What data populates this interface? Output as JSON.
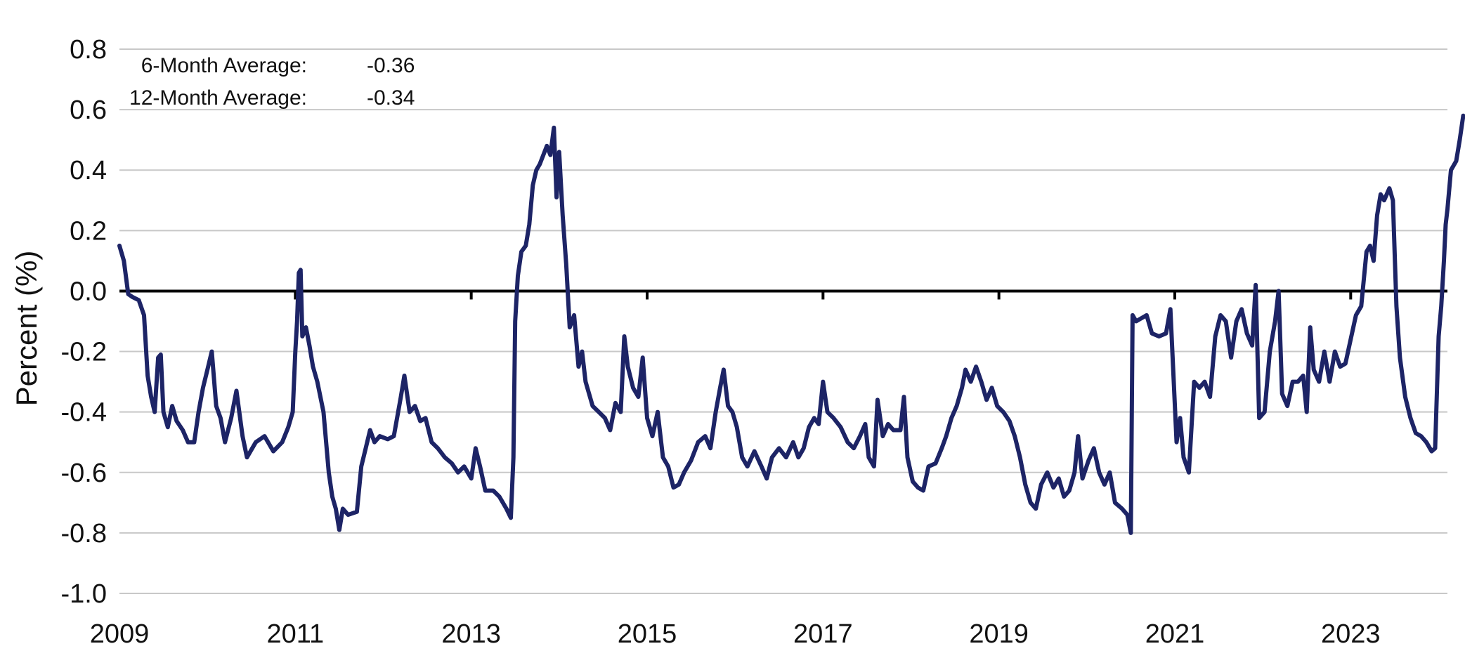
{
  "chart_data": {
    "type": "line",
    "title": "",
    "xlabel": "",
    "ylabel": "Percent (%)",
    "xlim": [
      2009,
      2024.1
    ],
    "ylim": [
      -1.0,
      0.8
    ],
    "y_ticks": [
      "0.8",
      "0.6",
      "0.4",
      "0.2",
      "0.0",
      "-0.2",
      "-0.4",
      "-0.6",
      "-0.8",
      "-1.0"
    ],
    "x_ticks": [
      "2009",
      "2011",
      "2013",
      "2015",
      "2017",
      "2019",
      "2021",
      "2023"
    ],
    "grid": "horizontal",
    "legend": "none",
    "colors": {
      "line": "#1d2466",
      "grid": "#c8c8c8",
      "zero_line": "#000000"
    },
    "annotations": [
      {
        "label": "6-Month Average:",
        "value": "-0.36"
      },
      {
        "label": "12-Month Average:",
        "value": "-0.34"
      }
    ],
    "series": [
      {
        "values": [
          [
            2009.0,
            0.15
          ],
          [
            2009.05,
            0.1
          ],
          [
            2009.1,
            -0.01
          ],
          [
            2009.15,
            -0.02
          ],
          [
            2009.22,
            -0.03
          ],
          [
            2009.28,
            -0.08
          ],
          [
            2009.32,
            -0.28
          ],
          [
            2009.36,
            -0.35
          ],
          [
            2009.4,
            -0.4
          ],
          [
            2009.44,
            -0.22
          ],
          [
            2009.47,
            -0.21
          ],
          [
            2009.5,
            -0.4
          ],
          [
            2009.55,
            -0.45
          ],
          [
            2009.6,
            -0.38
          ],
          [
            2009.65,
            -0.43
          ],
          [
            2009.72,
            -0.46
          ],
          [
            2009.78,
            -0.5
          ],
          [
            2009.85,
            -0.5
          ],
          [
            2009.9,
            -0.4
          ],
          [
            2009.95,
            -0.32
          ],
          [
            2010.0,
            -0.26
          ],
          [
            2010.05,
            -0.2
          ],
          [
            2010.1,
            -0.38
          ],
          [
            2010.15,
            -0.42
          ],
          [
            2010.2,
            -0.5
          ],
          [
            2010.27,
            -0.42
          ],
          [
            2010.33,
            -0.33
          ],
          [
            2010.4,
            -0.48
          ],
          [
            2010.45,
            -0.55
          ],
          [
            2010.55,
            -0.5
          ],
          [
            2010.65,
            -0.48
          ],
          [
            2010.75,
            -0.53
          ],
          [
            2010.85,
            -0.5
          ],
          [
            2010.92,
            -0.45
          ],
          [
            2010.97,
            -0.4
          ],
          [
            2011.0,
            -0.2
          ],
          [
            2011.02,
            -0.1
          ],
          [
            2011.04,
            0.06
          ],
          [
            2011.06,
            0.07
          ],
          [
            2011.08,
            -0.15
          ],
          [
            2011.12,
            -0.12
          ],
          [
            2011.16,
            -0.18
          ],
          [
            2011.2,
            -0.25
          ],
          [
            2011.25,
            -0.3
          ],
          [
            2011.32,
            -0.4
          ],
          [
            2011.38,
            -0.6
          ],
          [
            2011.42,
            -0.68
          ],
          [
            2011.46,
            -0.72
          ],
          [
            2011.5,
            -0.79
          ],
          [
            2011.54,
            -0.72
          ],
          [
            2011.6,
            -0.74
          ],
          [
            2011.7,
            -0.73
          ],
          [
            2011.75,
            -0.58
          ],
          [
            2011.8,
            -0.52
          ],
          [
            2011.85,
            -0.46
          ],
          [
            2011.9,
            -0.5
          ],
          [
            2011.96,
            -0.48
          ],
          [
            2012.05,
            -0.49
          ],
          [
            2012.12,
            -0.48
          ],
          [
            2012.2,
            -0.35
          ],
          [
            2012.24,
            -0.28
          ],
          [
            2012.3,
            -0.4
          ],
          [
            2012.36,
            -0.38
          ],
          [
            2012.42,
            -0.43
          ],
          [
            2012.48,
            -0.42
          ],
          [
            2012.55,
            -0.5
          ],
          [
            2012.62,
            -0.52
          ],
          [
            2012.7,
            -0.55
          ],
          [
            2012.78,
            -0.57
          ],
          [
            2012.85,
            -0.6
          ],
          [
            2012.92,
            -0.58
          ],
          [
            2013.0,
            -0.62
          ],
          [
            2013.05,
            -0.52
          ],
          [
            2013.1,
            -0.58
          ],
          [
            2013.16,
            -0.66
          ],
          [
            2013.25,
            -0.66
          ],
          [
            2013.32,
            -0.68
          ],
          [
            2013.4,
            -0.72
          ],
          [
            2013.45,
            -0.75
          ],
          [
            2013.48,
            -0.55
          ],
          [
            2013.5,
            -0.1
          ],
          [
            2013.53,
            0.05
          ],
          [
            2013.57,
            0.13
          ],
          [
            2013.62,
            0.15
          ],
          [
            2013.66,
            0.22
          ],
          [
            2013.7,
            0.35
          ],
          [
            2013.74,
            0.4
          ],
          [
            2013.78,
            0.42
          ],
          [
            2013.82,
            0.45
          ],
          [
            2013.86,
            0.48
          ],
          [
            2013.9,
            0.45
          ],
          [
            2013.94,
            0.54
          ],
          [
            2013.97,
            0.31
          ],
          [
            2014.0,
            0.46
          ],
          [
            2014.04,
            0.25
          ],
          [
            2014.08,
            0.09
          ],
          [
            2014.12,
            -0.12
          ],
          [
            2014.17,
            -0.08
          ],
          [
            2014.22,
            -0.25
          ],
          [
            2014.26,
            -0.2
          ],
          [
            2014.3,
            -0.3
          ],
          [
            2014.38,
            -0.38
          ],
          [
            2014.45,
            -0.4
          ],
          [
            2014.52,
            -0.42
          ],
          [
            2014.58,
            -0.46
          ],
          [
            2014.64,
            -0.37
          ],
          [
            2014.7,
            -0.4
          ],
          [
            2014.74,
            -0.15
          ],
          [
            2014.78,
            -0.25
          ],
          [
            2014.84,
            -0.32
          ],
          [
            2014.9,
            -0.35
          ],
          [
            2014.95,
            -0.22
          ],
          [
            2015.0,
            -0.42
          ],
          [
            2015.06,
            -0.48
          ],
          [
            2015.12,
            -0.4
          ],
          [
            2015.18,
            -0.55
          ],
          [
            2015.24,
            -0.58
          ],
          [
            2015.3,
            -0.65
          ],
          [
            2015.36,
            -0.64
          ],
          [
            2015.42,
            -0.6
          ],
          [
            2015.5,
            -0.56
          ],
          [
            2015.58,
            -0.5
          ],
          [
            2015.66,
            -0.48
          ],
          [
            2015.72,
            -0.52
          ],
          [
            2015.78,
            -0.4
          ],
          [
            2015.83,
            -0.32
          ],
          [
            2015.87,
            -0.26
          ],
          [
            2015.92,
            -0.38
          ],
          [
            2015.97,
            -0.4
          ],
          [
            2016.02,
            -0.45
          ],
          [
            2016.08,
            -0.55
          ],
          [
            2016.14,
            -0.58
          ],
          [
            2016.22,
            -0.53
          ],
          [
            2016.3,
            -0.58
          ],
          [
            2016.36,
            -0.62
          ],
          [
            2016.42,
            -0.55
          ],
          [
            2016.5,
            -0.52
          ],
          [
            2016.58,
            -0.55
          ],
          [
            2016.66,
            -0.5
          ],
          [
            2016.72,
            -0.55
          ],
          [
            2016.78,
            -0.52
          ],
          [
            2016.84,
            -0.45
          ],
          [
            2016.9,
            -0.42
          ],
          [
            2016.95,
            -0.44
          ],
          [
            2017.0,
            -0.3
          ],
          [
            2017.05,
            -0.4
          ],
          [
            2017.12,
            -0.42
          ],
          [
            2017.2,
            -0.45
          ],
          [
            2017.28,
            -0.5
          ],
          [
            2017.35,
            -0.52
          ],
          [
            2017.42,
            -0.48
          ],
          [
            2017.48,
            -0.44
          ],
          [
            2017.52,
            -0.55
          ],
          [
            2017.58,
            -0.58
          ],
          [
            2017.62,
            -0.36
          ],
          [
            2017.68,
            -0.48
          ],
          [
            2017.74,
            -0.44
          ],
          [
            2017.8,
            -0.46
          ],
          [
            2017.88,
            -0.46
          ],
          [
            2017.92,
            -0.35
          ],
          [
            2017.96,
            -0.55
          ],
          [
            2018.02,
            -0.63
          ],
          [
            2018.08,
            -0.65
          ],
          [
            2018.14,
            -0.66
          ],
          [
            2018.2,
            -0.58
          ],
          [
            2018.28,
            -0.57
          ],
          [
            2018.35,
            -0.52
          ],
          [
            2018.4,
            -0.48
          ],
          [
            2018.46,
            -0.42
          ],
          [
            2018.52,
            -0.38
          ],
          [
            2018.58,
            -0.32
          ],
          [
            2018.62,
            -0.26
          ],
          [
            2018.68,
            -0.3
          ],
          [
            2018.74,
            -0.25
          ],
          [
            2018.8,
            -0.3
          ],
          [
            2018.86,
            -0.36
          ],
          [
            2018.92,
            -0.32
          ],
          [
            2018.98,
            -0.38
          ],
          [
            2019.05,
            -0.4
          ],
          [
            2019.12,
            -0.43
          ],
          [
            2019.18,
            -0.48
          ],
          [
            2019.24,
            -0.55
          ],
          [
            2019.3,
            -0.64
          ],
          [
            2019.36,
            -0.7
          ],
          [
            2019.42,
            -0.72
          ],
          [
            2019.48,
            -0.64
          ],
          [
            2019.55,
            -0.6
          ],
          [
            2019.62,
            -0.65
          ],
          [
            2019.68,
            -0.62
          ],
          [
            2019.74,
            -0.68
          ],
          [
            2019.8,
            -0.66
          ],
          [
            2019.86,
            -0.6
          ],
          [
            2019.9,
            -0.48
          ],
          [
            2019.95,
            -0.62
          ],
          [
            2020.02,
            -0.56
          ],
          [
            2020.08,
            -0.52
          ],
          [
            2020.14,
            -0.6
          ],
          [
            2020.2,
            -0.64
          ],
          [
            2020.26,
            -0.6
          ],
          [
            2020.32,
            -0.7
          ],
          [
            2020.4,
            -0.72
          ],
          [
            2020.46,
            -0.74
          ],
          [
            2020.5,
            -0.8
          ],
          [
            2020.52,
            -0.08
          ],
          [
            2020.56,
            -0.1
          ],
          [
            2020.62,
            -0.09
          ],
          [
            2020.68,
            -0.08
          ],
          [
            2020.74,
            -0.14
          ],
          [
            2020.82,
            -0.15
          ],
          [
            2020.9,
            -0.14
          ],
          [
            2020.95,
            -0.06
          ],
          [
            2020.98,
            -0.25
          ],
          [
            2021.02,
            -0.5
          ],
          [
            2021.06,
            -0.42
          ],
          [
            2021.1,
            -0.55
          ],
          [
            2021.16,
            -0.6
          ],
          [
            2021.22,
            -0.3
          ],
          [
            2021.28,
            -0.32
          ],
          [
            2021.34,
            -0.3
          ],
          [
            2021.4,
            -0.35
          ],
          [
            2021.46,
            -0.15
          ],
          [
            2021.52,
            -0.08
          ],
          [
            2021.58,
            -0.1
          ],
          [
            2021.64,
            -0.22
          ],
          [
            2021.7,
            -0.1
          ],
          [
            2021.76,
            -0.06
          ],
          [
            2021.82,
            -0.14
          ],
          [
            2021.88,
            -0.18
          ],
          [
            2021.92,
            0.02
          ],
          [
            2021.96,
            -0.42
          ],
          [
            2022.02,
            -0.4
          ],
          [
            2022.08,
            -0.2
          ],
          [
            2022.14,
            -0.1
          ],
          [
            2022.18,
            0.0
          ],
          [
            2022.22,
            -0.34
          ],
          [
            2022.28,
            -0.38
          ],
          [
            2022.34,
            -0.3
          ],
          [
            2022.4,
            -0.3
          ],
          [
            2022.46,
            -0.28
          ],
          [
            2022.5,
            -0.4
          ],
          [
            2022.54,
            -0.12
          ],
          [
            2022.58,
            -0.26
          ],
          [
            2022.64,
            -0.3
          ],
          [
            2022.7,
            -0.2
          ],
          [
            2022.76,
            -0.3
          ],
          [
            2022.82,
            -0.2
          ],
          [
            2022.88,
            -0.25
          ],
          [
            2022.94,
            -0.24
          ],
          [
            2023.0,
            -0.16
          ],
          [
            2023.06,
            -0.08
          ],
          [
            2023.12,
            -0.05
          ],
          [
            2023.18,
            0.13
          ],
          [
            2023.22,
            0.15
          ],
          [
            2023.26,
            0.1
          ],
          [
            2023.3,
            0.25
          ],
          [
            2023.34,
            0.32
          ],
          [
            2023.38,
            0.3
          ],
          [
            2023.44,
            0.34
          ],
          [
            2023.48,
            0.3
          ],
          [
            2023.52,
            -0.05
          ],
          [
            2023.56,
            -0.22
          ],
          [
            2023.62,
            -0.35
          ],
          [
            2023.68,
            -0.42
          ],
          [
            2023.74,
            -0.47
          ],
          [
            2023.8,
            -0.48
          ],
          [
            2023.86,
            -0.5
          ],
          [
            2023.92,
            -0.53
          ],
          [
            2023.96,
            -0.52
          ],
          [
            2024.0,
            -0.15
          ],
          [
            2024.03,
            -0.05
          ],
          [
            2024.06,
            0.1
          ],
          [
            2024.08,
            0.22
          ],
          [
            2024.1,
            0.27
          ],
          [
            2024.14,
            0.4
          ],
          [
            2024.2,
            0.43
          ],
          [
            2024.24,
            0.5
          ],
          [
            2024.28,
            0.58
          ]
        ]
      }
    ]
  }
}
